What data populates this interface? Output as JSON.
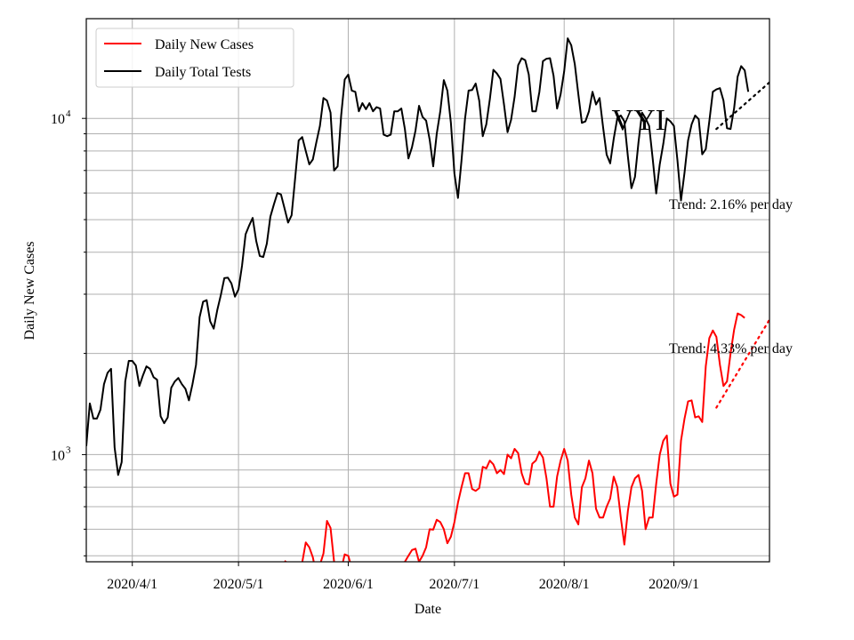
{
  "chart_data": {
    "type": "line",
    "title": "",
    "xlabel": "Date",
    "ylabel": "Daily New Cases",
    "yscale": "log",
    "ylim": [
      480,
      19800
    ],
    "xlim": [
      "2020-03-19",
      "2020-09-28"
    ],
    "x_start": "2020-03-19",
    "grid": true,
    "legend": "top-left",
    "x_ticks": [
      {
        "date": "2020-04-01",
        "label": "2020/4/1"
      },
      {
        "date": "2020-05-01",
        "label": "2020/5/1"
      },
      {
        "date": "2020-06-01",
        "label": "2020/6/1"
      },
      {
        "date": "2020-07-01",
        "label": "2020/7/1"
      },
      {
        "date": "2020-08-01",
        "label": "2020/8/1"
      },
      {
        "date": "2020-09-01",
        "label": "2020/9/1"
      }
    ],
    "y_ticks": [
      {
        "value": 1000,
        "base": "10",
        "exp": "3"
      },
      {
        "value": 10000,
        "base": "10",
        "exp": "4"
      }
    ],
    "series": [
      {
        "name": "Daily New Cases",
        "color": "#ff0000",
        "values": [
          null,
          null,
          null,
          null,
          null,
          null,
          null,
          null,
          null,
          null,
          null,
          null,
          null,
          null,
          null,
          null,
          null,
          null,
          null,
          null,
          null,
          null,
          null,
          null,
          null,
          null,
          null,
          null,
          null,
          null,
          null,
          null,
          null,
          null,
          null,
          null,
          null,
          null,
          null,
          null,
          null,
          null,
          null,
          null,
          null,
          null,
          null,
          null,
          null,
          null,
          null,
          null,
          null,
          null,
          null,
          null,
          483,
          475,
          470,
          472,
          474,
          478,
          548,
          530,
          495,
          440,
          470,
          508,
          635,
          605,
          480,
          460,
          455,
          505,
          500,
          460,
          460,
          455,
          450,
          450,
          445,
          440,
          445,
          450,
          460,
          455,
          450,
          460,
          462,
          470,
          480,
          500,
          520,
          525,
          480,
          500,
          530,
          600,
          598,
          640,
          630,
          600,
          545,
          570,
          630,
          720,
          800,
          880,
          880,
          790,
          780,
          795,
          920,
          910,
          960,
          935,
          880,
          900,
          875,
          1000,
          975,
          1040,
          1010,
          880,
          820,
          815,
          940,
          960,
          1020,
          980,
          850,
          700,
          700,
          860,
          960,
          1040,
          960,
          760,
          650,
          620,
          800,
          850,
          960,
          880,
          690,
          650,
          650,
          700,
          740,
          860,
          800,
          650,
          540,
          680,
          800,
          850,
          870,
          780,
          600,
          650,
          650,
          820,
          1000,
          1100,
          1140,
          820,
          750,
          760,
          1100,
          1280,
          1440,
          1450,
          1290,
          1300,
          1250,
          1830,
          2220,
          2340,
          2240,
          1850,
          1600,
          1650,
          2000,
          2350,
          2630,
          2600,
          2550
        ]
      },
      {
        "name": "Daily Total Tests",
        "color": "#000000",
        "values": [
          1060,
          1420,
          1280,
          1280,
          1360,
          1620,
          1750,
          1800,
          1050,
          870,
          950,
          1650,
          1900,
          1900,
          1840,
          1600,
          1720,
          1830,
          1800,
          1700,
          1670,
          1300,
          1240,
          1290,
          1580,
          1650,
          1690,
          1620,
          1570,
          1450,
          1620,
          1850,
          2560,
          2850,
          2880,
          2490,
          2370,
          2690,
          2980,
          3350,
          3360,
          3230,
          2950,
          3100,
          3650,
          4520,
          4800,
          5060,
          4320,
          3900,
          3870,
          4240,
          5100,
          5550,
          6000,
          5940,
          5400,
          4900,
          5150,
          6640,
          8600,
          8800,
          8000,
          7300,
          7550,
          8500,
          9500,
          11500,
          11300,
          10400,
          7000,
          7200,
          10200,
          13050,
          13500,
          12100,
          12000,
          10500,
          11100,
          10650,
          11100,
          10500,
          10800,
          10700,
          8950,
          8850,
          8950,
          10500,
          10500,
          10700,
          9300,
          7600,
          8200,
          9200,
          10900,
          10100,
          9850,
          8650,
          7200,
          9000,
          10500,
          13000,
          12100,
          9700,
          6850,
          5800,
          7500,
          10000,
          12100,
          12150,
          12700,
          11300,
          8850,
          9600,
          11400,
          13950,
          13600,
          13100,
          11000,
          9100,
          9900,
          11600,
          14400,
          15100,
          14900,
          13500,
          10500,
          10500,
          12000,
          14800,
          15050,
          15100,
          13400,
          10700,
          11800,
          13800,
          17300,
          16500,
          14500,
          11800,
          9700,
          9800,
          10500,
          12000,
          11000,
          11500,
          9400,
          7800,
          7350,
          8700,
          10000,
          10200,
          9800,
          7700,
          6200,
          6700,
          8500,
          10400,
          10000,
          9500,
          7600,
          5980,
          7300,
          8400,
          10000,
          9800,
          9500,
          7500,
          5700,
          6900,
          8600,
          9600,
          10200,
          9950,
          7820,
          8100,
          9800,
          12000,
          12200,
          12300,
          11300,
          9350,
          9300,
          10700,
          13300,
          14300,
          13900,
          12000
        ]
      }
    ],
    "trends": [
      {
        "label": "Trend: 2.16% per day",
        "color": "#000000",
        "x_start": "2020-09-13",
        "x_end": "2020-09-28",
        "y_start": 9300,
        "y_end": 12800
      },
      {
        "label": "Trend: 4.33% per day",
        "color": "#ff0000",
        "x_start": "2020-09-13",
        "x_end": "2020-09-28",
        "y_start": 1380,
        "y_end": 2520
      }
    ],
    "annotations": [
      {
        "text": "VYI",
        "date": "2020-08-22",
        "value": 9700
      }
    ]
  }
}
